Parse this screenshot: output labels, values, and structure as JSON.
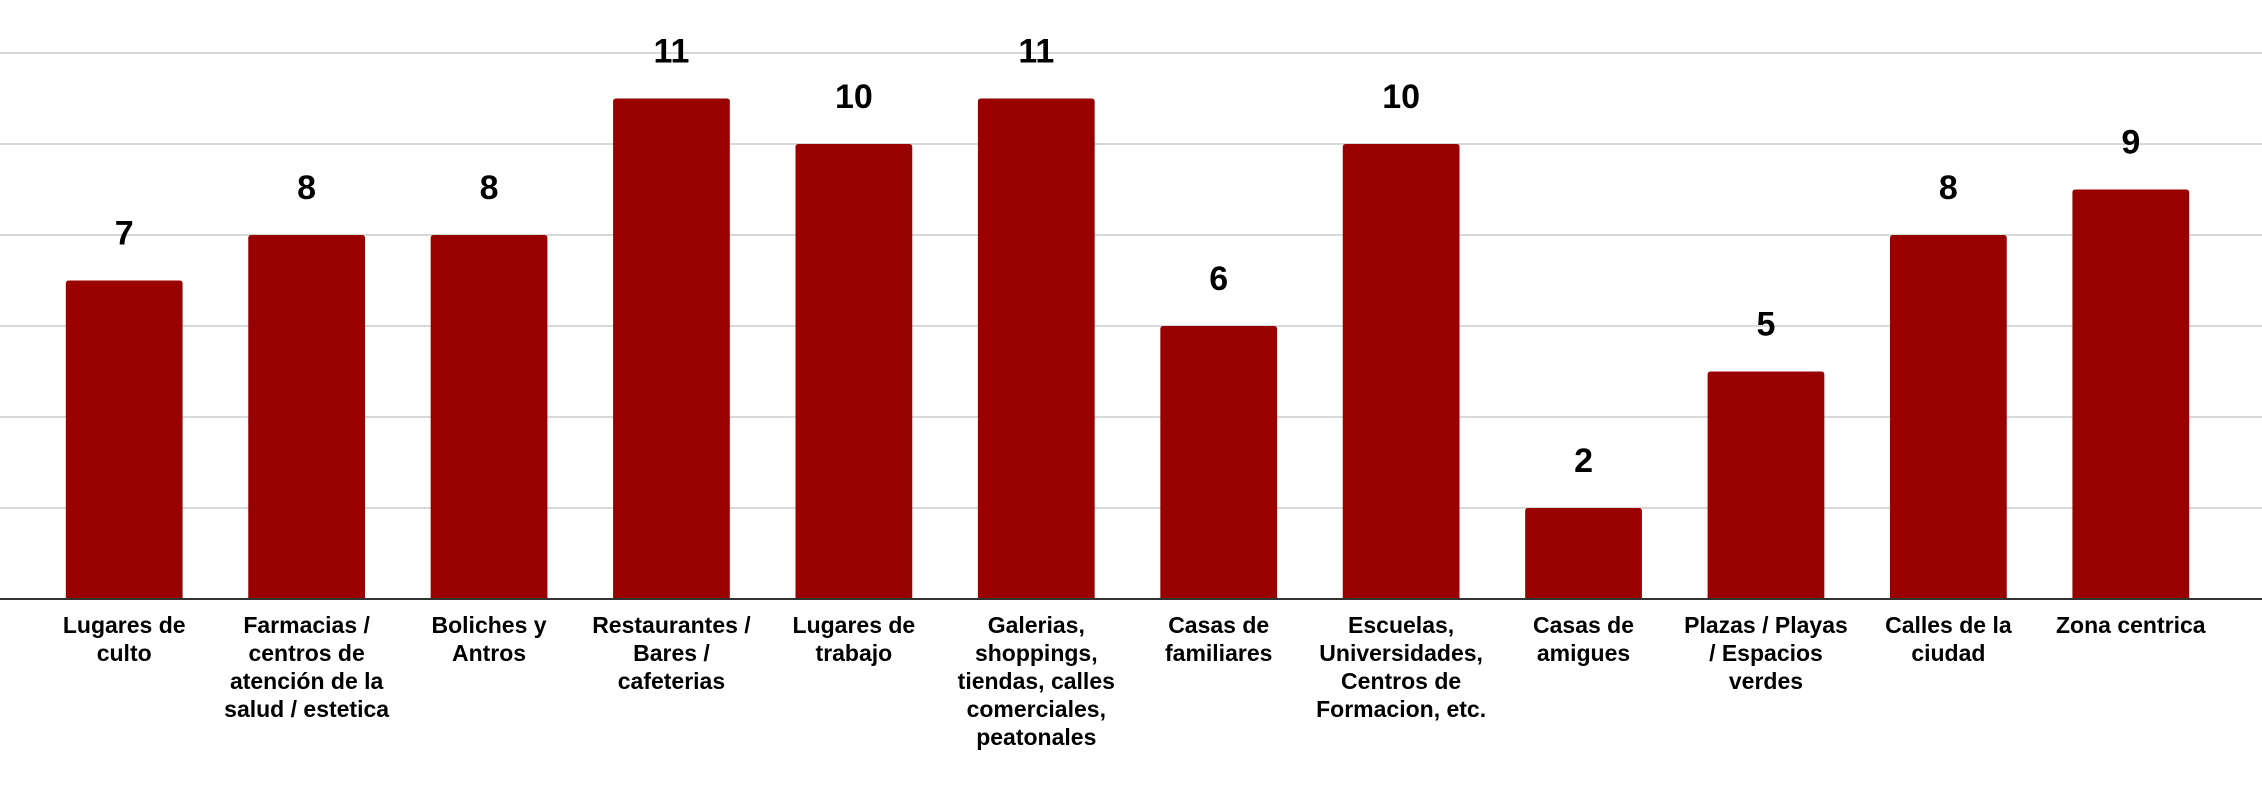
{
  "chart_data": {
    "type": "bar",
    "categories": [
      "Lugares de culto",
      "Farmacias / centros de atención de la salud / estetica",
      "Boliches y Antros",
      "Restaurantes / Bares / cafeterias",
      "Lugares de trabajo",
      "Galerias, shoppings, tiendas, calles comerciales, peatonales",
      "Casas de familiares",
      "Escuelas, Universidades, Centros de Formacion, etc.",
      "Casas de amigues",
      "Plazas / Playas / Espacios verdes",
      "Calles de la ciudad",
      "Zona centrica"
    ],
    "values": [
      7,
      8,
      8,
      11,
      10,
      11,
      6,
      10,
      2,
      5,
      8,
      9
    ],
    "color": "#990000",
    "ylim": [
      0,
      12
    ],
    "yticks": [
      0,
      2,
      4,
      6,
      8,
      10,
      12
    ],
    "grid": true
  }
}
